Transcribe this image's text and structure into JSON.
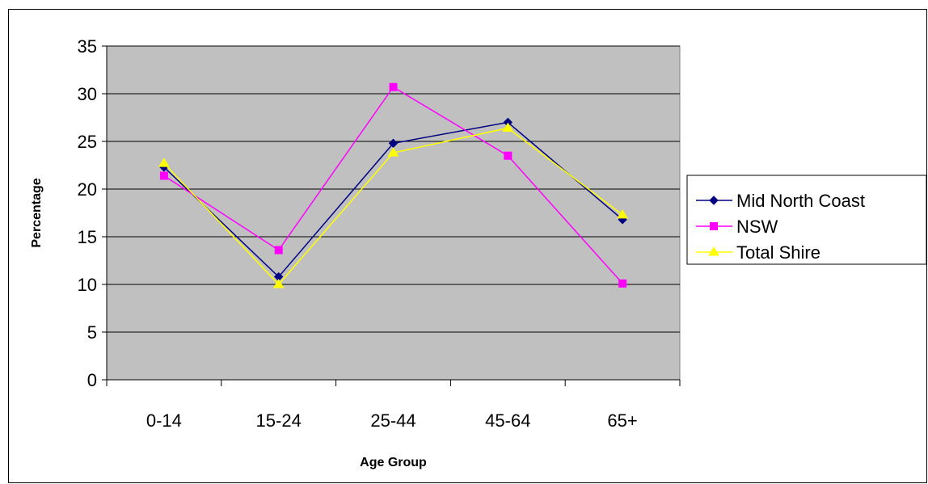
{
  "chart_data": {
    "type": "line",
    "title": "",
    "xlabel": "Age Group",
    "ylabel": "Percentage",
    "categories": [
      "0-14",
      "15-24",
      "25-44",
      "45-64",
      "65+"
    ],
    "ylim": [
      0,
      35
    ],
    "yticks": [
      0,
      5,
      10,
      15,
      20,
      25,
      30,
      35
    ],
    "grid": true,
    "plot_background": "#C0C0C0",
    "legend_position": "right",
    "series": [
      {
        "name": "Mid North Coast",
        "values": [
          22.3,
          10.8,
          24.8,
          27.0,
          16.8
        ],
        "color": "#000080",
        "marker": "diamond"
      },
      {
        "name": "NSW",
        "values": [
          21.4,
          13.6,
          30.7,
          23.5,
          10.1
        ],
        "color": "#FF00FF",
        "marker": "square"
      },
      {
        "name": "Total Shire",
        "values": [
          22.7,
          10.0,
          23.8,
          26.4,
          17.3
        ],
        "color": "#FFFF00",
        "marker": "triangle"
      }
    ]
  }
}
